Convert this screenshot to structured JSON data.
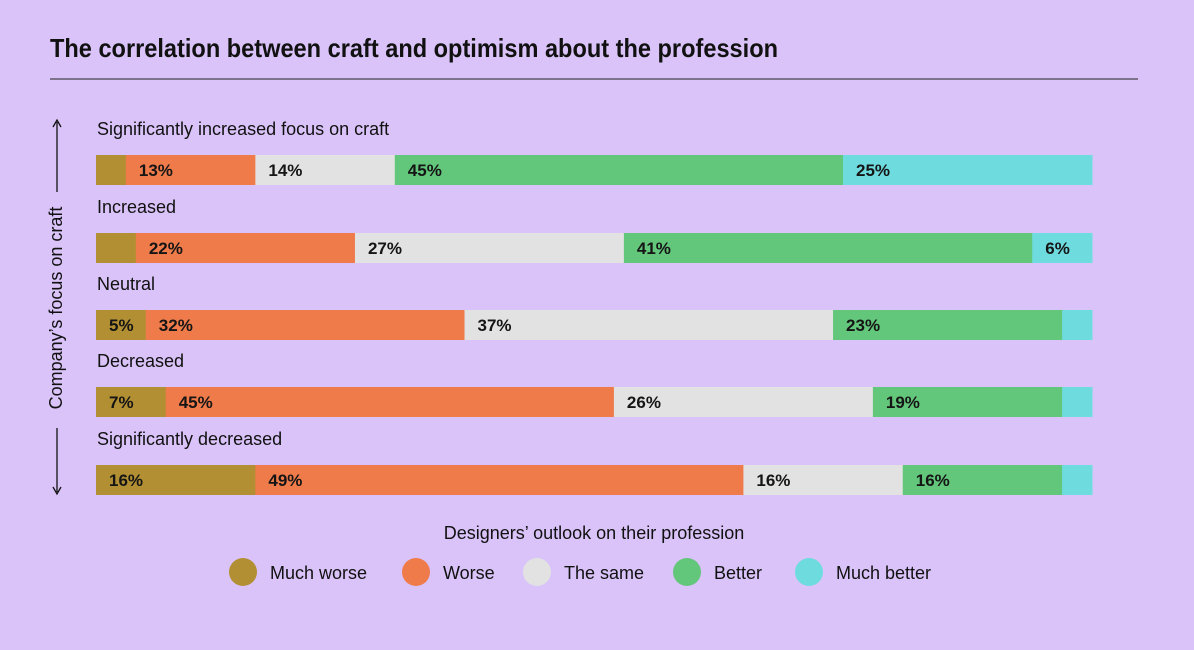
{
  "chart_data": {
    "type": "bar",
    "stacked": true,
    "orientation": "horizontal",
    "title": "The correlation between craft and optimism about the profession",
    "ylabel": "Company’s focus on craft",
    "xlabel": "Designers’ outlook on their profession",
    "categories": [
      "Significantly increased focus on craft",
      "Increased",
      "Neutral",
      "Decreased",
      "Significantly decreased"
    ],
    "series": [
      {
        "name": "Much worse",
        "color": "#b38f33",
        "values": [
          3,
          4,
          5,
          7,
          16
        ]
      },
      {
        "name": "Worse",
        "color": "#ef7b4b",
        "values": [
          13,
          22,
          32,
          45,
          49
        ]
      },
      {
        "name": "The same",
        "color": "#e2e2e2",
        "values": [
          14,
          27,
          37,
          26,
          16
        ]
      },
      {
        "name": "Better",
        "color": "#62c67b",
        "values": [
          45,
          41,
          23,
          19,
          16
        ]
      },
      {
        "name": "Much better",
        "color": "#6edcdf",
        "values": [
          25,
          6,
          3,
          3,
          3
        ]
      }
    ],
    "label_min_value": 5,
    "xlim": [
      0,
      100
    ],
    "legend_position": "bottom"
  }
}
